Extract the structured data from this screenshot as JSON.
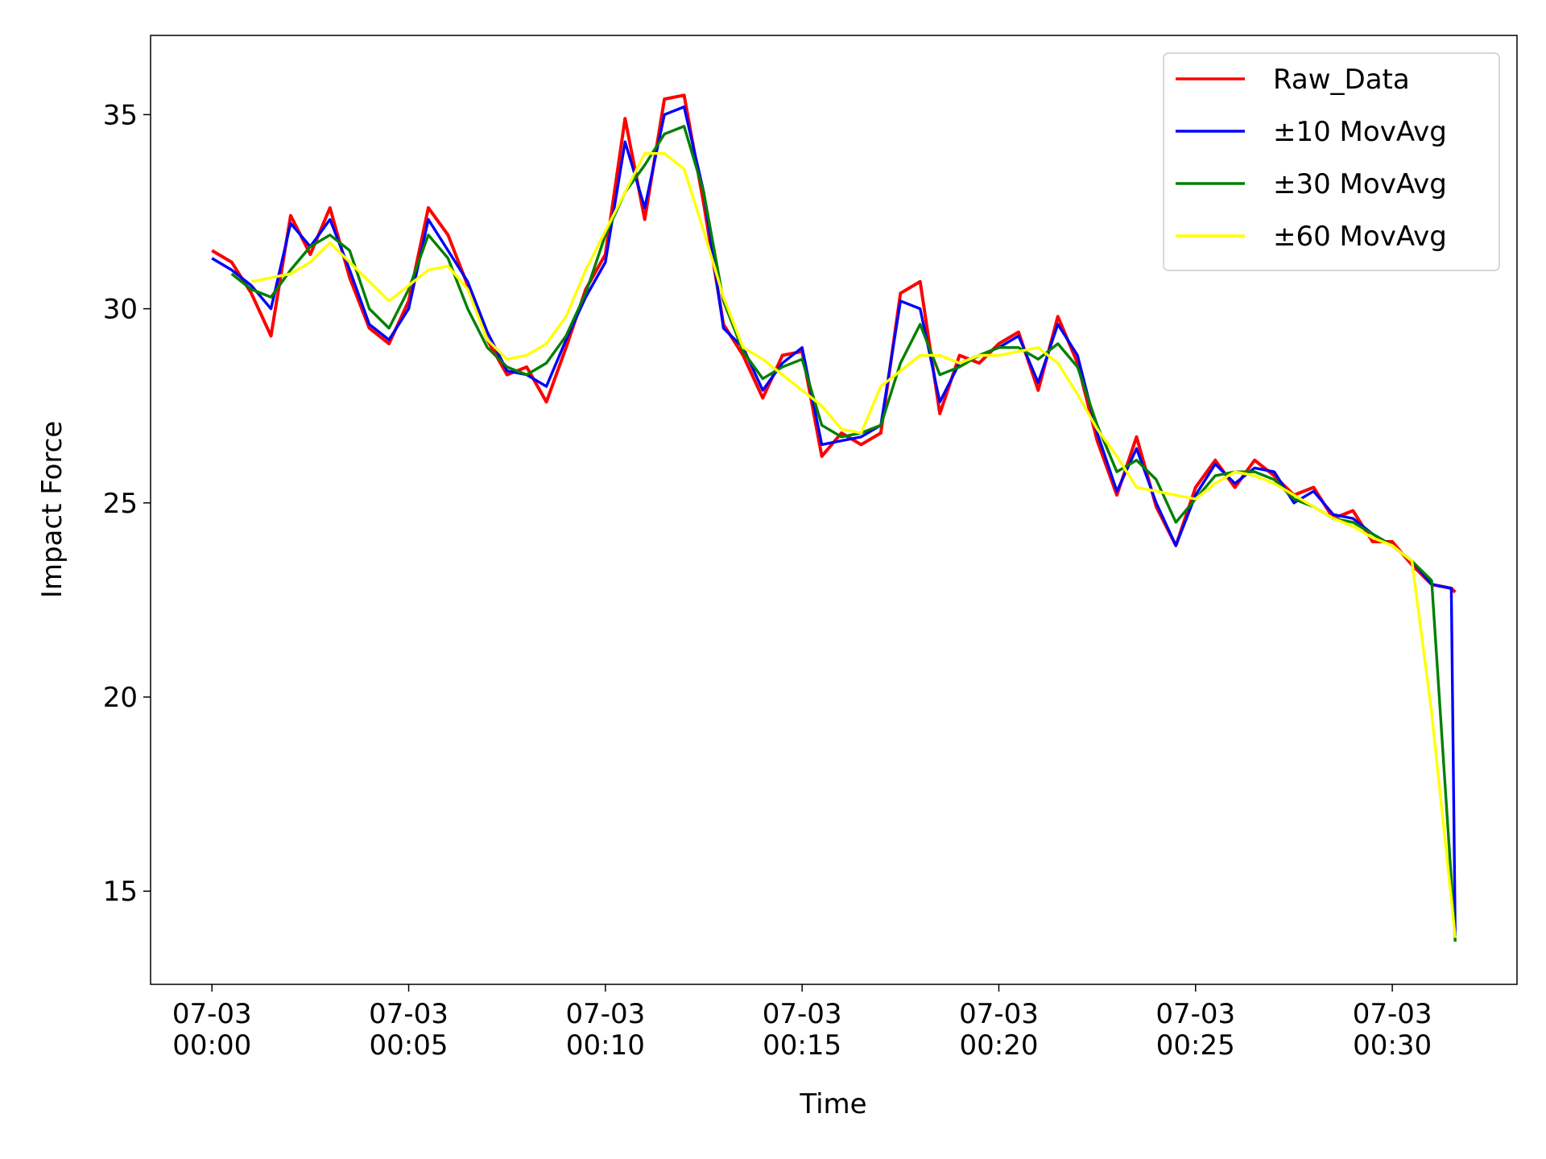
{
  "chart_data": {
    "type": "line",
    "xlabel": "Time",
    "ylabel": "Impact Force",
    "x": [
      0,
      0.5,
      1,
      1.5,
      2,
      2.5,
      3,
      3.5,
      4,
      4.5,
      5,
      5.5,
      6,
      6.5,
      7,
      7.5,
      8,
      8.5,
      9,
      9.5,
      10,
      10.5,
      11,
      11.5,
      12,
      12.5,
      13,
      13.5,
      14,
      14.5,
      15,
      15.5,
      16,
      16.5,
      17,
      17.5,
      18,
      18.5,
      19,
      19.5,
      20,
      20.5,
      21,
      21.5,
      22,
      22.5,
      23,
      23.5,
      24,
      24.5,
      25,
      25.5,
      26,
      26.5,
      27,
      27.5,
      28,
      28.5,
      29,
      29.5,
      30,
      30.5,
      31,
      31.5,
      31.6
    ],
    "series": [
      {
        "name": "Raw_Data",
        "color": "#ff0000",
        "values": [
          31.5,
          31.2,
          30.4,
          29.3,
          32.4,
          31.4,
          32.6,
          30.8,
          29.5,
          29.1,
          30.2,
          32.6,
          31.9,
          30.6,
          29.2,
          28.3,
          28.5,
          27.6,
          29.0,
          30.5,
          31.4,
          34.9,
          32.3,
          35.4,
          35.5,
          32.7,
          29.6,
          28.8,
          27.7,
          28.8,
          28.9,
          26.2,
          26.8,
          26.5,
          26.8,
          30.4,
          30.7,
          27.3,
          28.8,
          28.6,
          29.1,
          29.4,
          27.9,
          29.8,
          28.6,
          26.6,
          25.2,
          26.7,
          24.9,
          23.9,
          25.4,
          26.1,
          25.4,
          26.1,
          25.7,
          25.2,
          25.4,
          24.6,
          24.8,
          24.0,
          24.0,
          23.4,
          22.9,
          22.8,
          22.7
        ]
      },
      {
        "name": "±10 MovAvg",
        "color": "#0000ff",
        "values": [
          31.3,
          31.0,
          30.6,
          30.0,
          32.2,
          31.6,
          32.3,
          31.0,
          29.6,
          29.2,
          30.0,
          32.3,
          31.5,
          30.7,
          29.4,
          28.4,
          28.3,
          28.0,
          29.2,
          30.3,
          31.2,
          34.3,
          32.6,
          35.0,
          35.2,
          33.0,
          29.5,
          29.0,
          27.9,
          28.6,
          29.0,
          26.5,
          26.6,
          26.7,
          27.0,
          30.2,
          30.0,
          27.6,
          28.6,
          28.8,
          29.0,
          29.3,
          28.1,
          29.6,
          28.8,
          26.8,
          25.3,
          26.4,
          25.0,
          23.9,
          25.2,
          26.0,
          25.5,
          25.9,
          25.8,
          25.0,
          25.3,
          24.7,
          24.6,
          24.2,
          23.9,
          23.5,
          22.9,
          22.8,
          13.8
        ]
      },
      {
        "name": "±30 MovAvg",
        "color": "#008000",
        "values": [
          null,
          30.9,
          30.5,
          30.3,
          31.0,
          31.6,
          31.9,
          31.5,
          30.0,
          29.5,
          30.5,
          31.9,
          31.3,
          30.0,
          29.0,
          28.5,
          28.3,
          28.6,
          29.3,
          30.4,
          31.9,
          33.0,
          33.7,
          34.5,
          34.7,
          33.0,
          30.2,
          28.9,
          28.2,
          28.5,
          28.7,
          27.0,
          26.7,
          26.8,
          27.0,
          28.6,
          29.6,
          28.3,
          28.5,
          28.8,
          29.0,
          29.0,
          28.7,
          29.1,
          28.5,
          27.0,
          25.8,
          26.1,
          25.6,
          24.5,
          25.1,
          25.7,
          25.8,
          25.8,
          25.6,
          25.1,
          24.9,
          24.6,
          24.5,
          24.2,
          23.9,
          23.5,
          23.0,
          15.3,
          13.7
        ]
      },
      {
        "name": "±60 MovAvg",
        "color": "#ffff00",
        "values": [
          null,
          null,
          30.7,
          30.8,
          30.9,
          31.2,
          31.7,
          31.2,
          30.7,
          30.2,
          30.6,
          31.0,
          31.1,
          30.5,
          29.2,
          28.7,
          28.8,
          29.1,
          29.8,
          31.0,
          32.0,
          33.0,
          34.0,
          34.0,
          33.6,
          32.0,
          30.3,
          29.0,
          28.7,
          28.3,
          27.9,
          27.5,
          26.9,
          26.8,
          28.0,
          28.4,
          28.8,
          28.8,
          28.6,
          28.8,
          28.8,
          28.9,
          29.0,
          28.6,
          27.8,
          26.9,
          26.2,
          25.4,
          25.3,
          25.2,
          25.1,
          25.5,
          25.8,
          25.7,
          25.5,
          25.2,
          24.9,
          24.6,
          24.4,
          24.1,
          23.9,
          23.5,
          19.6,
          14.8,
          13.8
        ]
      }
    ],
    "xlim": [
      -1.56,
      33.17
    ],
    "ylim": [
      12.6,
      37.04
    ],
    "xticks": [
      {
        "value": 0,
        "label": "07-03\n00:00"
      },
      {
        "value": 5,
        "label": "07-03\n00:05"
      },
      {
        "value": 10,
        "label": "07-03\n00:10"
      },
      {
        "value": 15,
        "label": "07-03\n00:15"
      },
      {
        "value": 20,
        "label": "07-03\n00:20"
      },
      {
        "value": 25,
        "label": "07-03\n00:25"
      },
      {
        "value": 30,
        "label": "07-03\n00:30"
      }
    ],
    "yticks": [
      15,
      20,
      25,
      30,
      35
    ],
    "legend": "upper right"
  }
}
